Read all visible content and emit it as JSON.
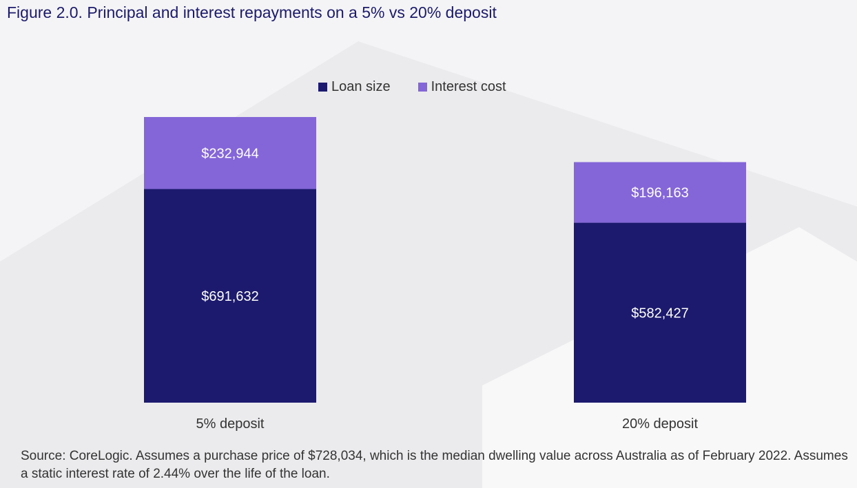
{
  "title": "Figure 2.0. Principal and interest repayments on a 5% vs 20% deposit",
  "colors": {
    "loan": "#1b1a6e",
    "interest": "#8566d8",
    "label_text": "#ffffff",
    "axis_text": "#333333"
  },
  "legend": [
    {
      "label": "Loan size",
      "color_key": "loan"
    },
    {
      "label": "Interest cost",
      "color_key": "interest"
    }
  ],
  "chart_data": {
    "type": "bar",
    "stacked": true,
    "title": "Figure 2.0. Principal and interest repayments on a 5% vs 20% deposit",
    "categories": [
      "5% deposit",
      "20% deposit"
    ],
    "series": [
      {
        "name": "Loan size",
        "values": [
          691632,
          582427
        ],
        "labels": [
          "$691,632",
          "$582,427"
        ]
      },
      {
        "name": "Interest cost",
        "values": [
          232944,
          196163
        ],
        "labels": [
          "$232,944",
          "$196,163"
        ]
      }
    ],
    "ylim": [
      0,
      924576
    ],
    "xlabel": "",
    "ylabel": "",
    "grid": false,
    "legend_position": "top-center"
  },
  "source": "Source: CoreLogic. Assumes a purchase price of $728,034, which is the median dwelling value across Australia as of February 2022. Assumes a static interest rate of 2.44% over the life of the loan."
}
